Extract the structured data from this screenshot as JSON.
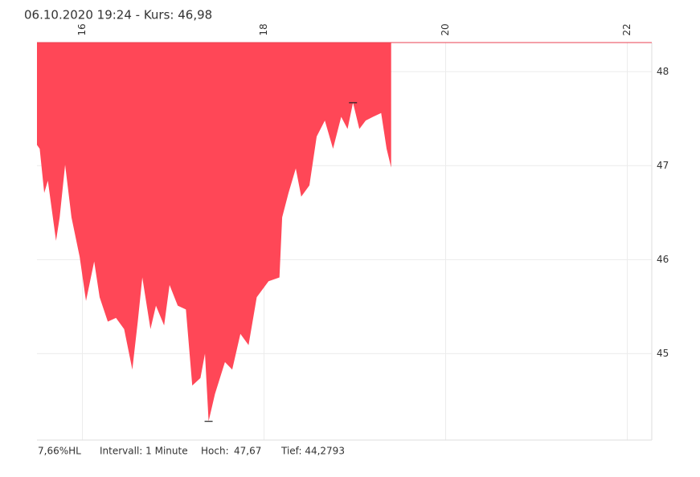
{
  "chart_data": {
    "type": "area",
    "title": "06.10.2020 19:24  -  Kurs: 46,98",
    "x": [
      15.5,
      15.53,
      15.58,
      15.62,
      15.71,
      15.75,
      15.81,
      15.88,
      15.97,
      16.04,
      16.13,
      16.19,
      16.28,
      16.37,
      16.46,
      16.55,
      16.61,
      16.66,
      16.75,
      16.81,
      16.9,
      16.96,
      17.05,
      17.14,
      17.21,
      17.3,
      17.35,
      17.39,
      17.46,
      17.57,
      17.65,
      17.74,
      17.83,
      17.92,
      18.05,
      18.17,
      18.2,
      18.27,
      18.35,
      18.41,
      18.5,
      18.58,
      18.67,
      18.76,
      18.85,
      18.92,
      18.98,
      19.05,
      19.12,
      19.2,
      19.29,
      19.35,
      19.4
    ],
    "series": [
      {
        "color": "#ff4757",
        "values": [
          47.22,
          47.18,
          46.71,
          46.84,
          46.2,
          46.45,
          47.01,
          46.45,
          46.03,
          45.56,
          45.98,
          45.6,
          45.34,
          45.38,
          45.26,
          44.83,
          45.34,
          45.81,
          45.26,
          45.51,
          45.3,
          45.73,
          45.51,
          45.47,
          44.66,
          44.74,
          45.0,
          44.2793,
          44.57,
          44.91,
          44.83,
          45.21,
          45.09,
          45.6,
          45.77,
          45.81,
          46.45,
          46.71,
          46.97,
          46.67,
          46.79,
          47.31,
          47.48,
          47.18,
          47.52,
          47.39,
          47.67,
          47.39,
          47.48,
          47.52,
          47.56,
          47.18,
          46.98
        ]
      }
    ],
    "baseline": 48.31,
    "baseline_color": "#e84050",
    "xlim": [
      15.5,
      22.27
    ],
    "xticks": [
      16,
      18,
      20,
      22
    ],
    "ylim": [
      44.08,
      48.31
    ],
    "yticks": [
      45,
      46,
      47,
      48
    ],
    "grid": true,
    "footer": {
      "range": "7,66%HL",
      "interval": "Intervall: 1 Minute",
      "high_label": "Hoch:",
      "high": "47,67",
      "low": "Tief: 44,2793"
    }
  }
}
